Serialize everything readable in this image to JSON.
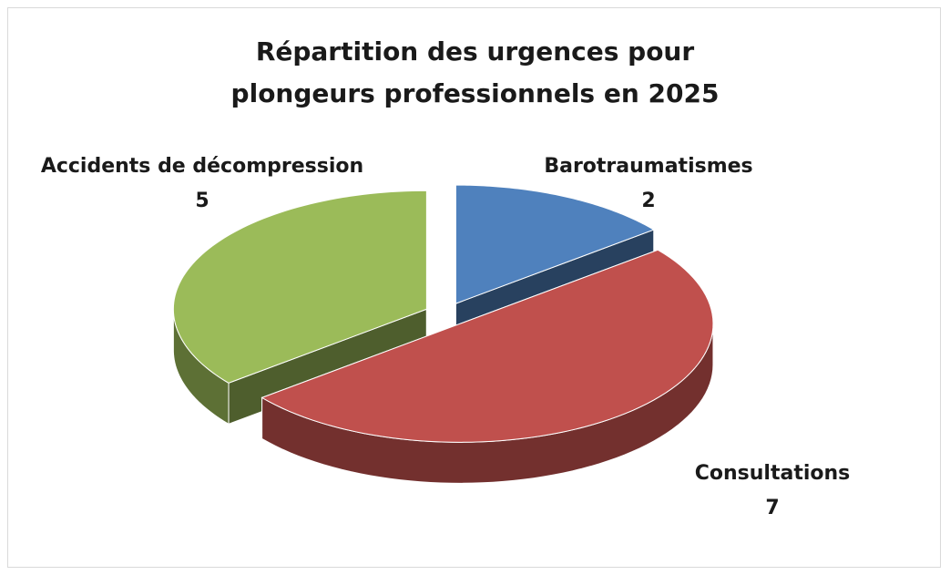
{
  "chart_data": {
    "type": "pie",
    "title": "Répartition des urgences pour plongeurs professionnels en 2025",
    "categories": [
      "Barotraumatismes",
      "Consultations",
      "Accidents de décompression"
    ],
    "values": [
      2,
      7,
      5
    ],
    "colors": [
      "#4f81bd",
      "#c0504d",
      "#9bbb59"
    ]
  }
}
